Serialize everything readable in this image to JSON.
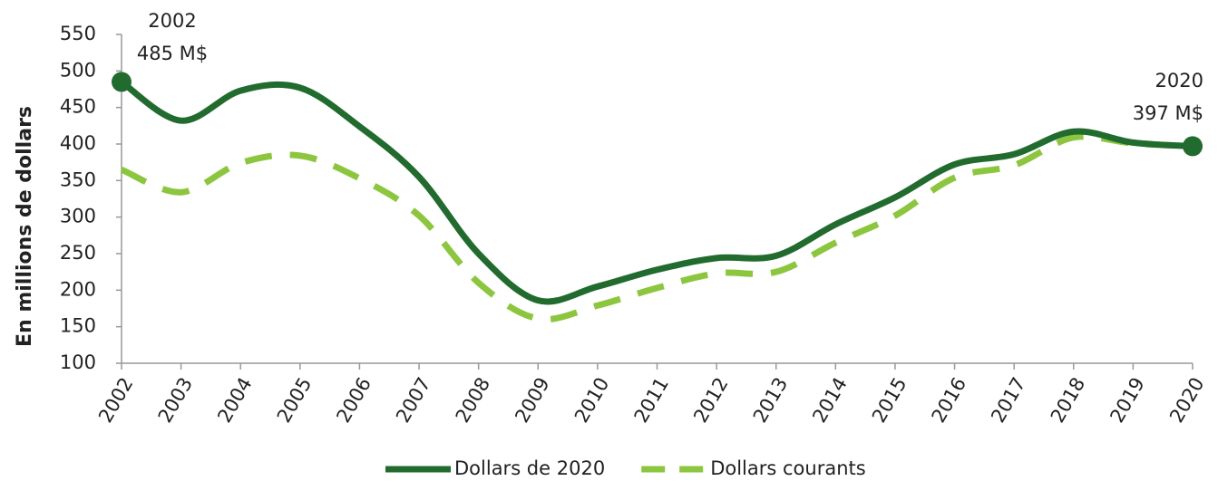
{
  "chart_data": {
    "type": "line",
    "y_label": "En millions de dollars",
    "categories": [
      "2002",
      "2003",
      "2004",
      "2005",
      "2006",
      "2007",
      "2008",
      "2009",
      "2010",
      "2011",
      "2012",
      "2013",
      "2014",
      "2015",
      "2016",
      "2017",
      "2018",
      "2019",
      "2020"
    ],
    "series": [
      {
        "name": "Dollars de 2020",
        "color": "#226b2e",
        "dash": false,
        "values": [
          485,
          432,
          473,
          477,
          424,
          355,
          250,
          186,
          205,
          228,
          244,
          247,
          290,
          327,
          372,
          386,
          417,
          402,
          397
        ]
      },
      {
        "name": "Dollars courants",
        "color": "#8cc63f",
        "dash": true,
        "values": [
          365,
          334,
          374,
          384,
          353,
          302,
          210,
          161,
          179,
          203,
          223,
          225,
          265,
          302,
          354,
          371,
          409,
          401,
          397
        ]
      }
    ],
    "annotations": [
      [
        "2002",
        "485 M$"
      ],
      [
        "2020",
        "397 M$"
      ]
    ],
    "ylim": [
      100,
      550
    ],
    "yticks": [
      100,
      150,
      200,
      250,
      300,
      350,
      400,
      450,
      500,
      550
    ],
    "legend": "bottom"
  }
}
